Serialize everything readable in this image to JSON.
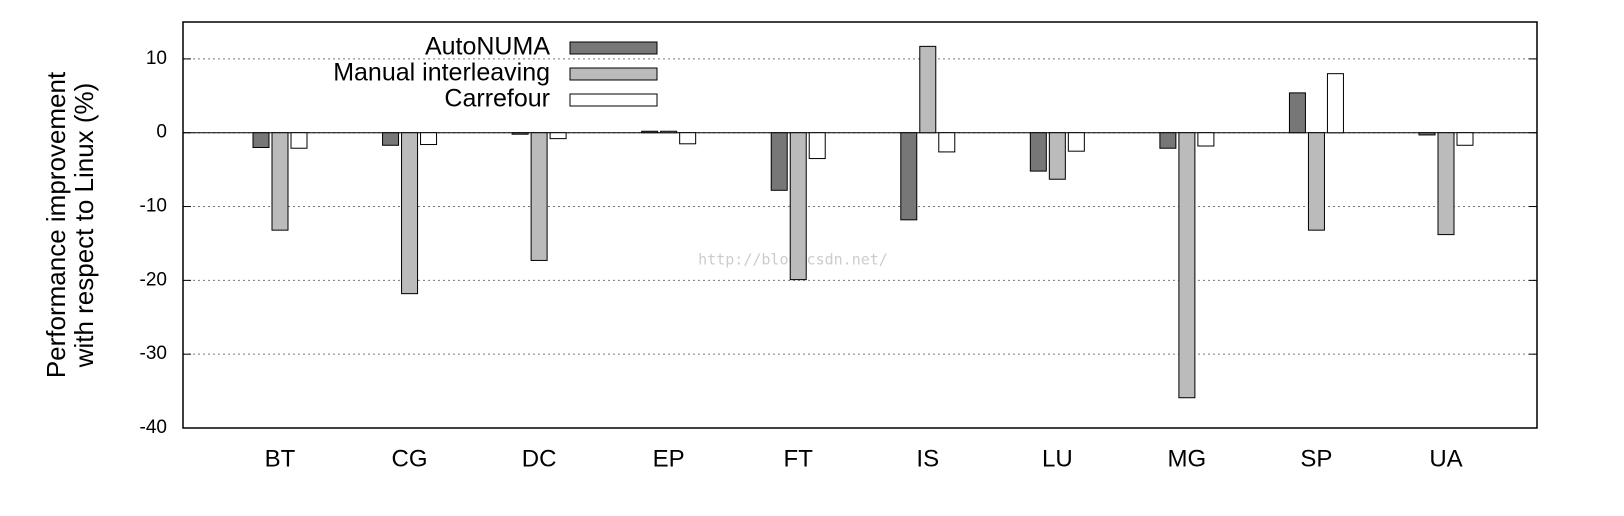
{
  "chart_data": {
    "type": "bar",
    "ylabel": [
      "Performance improvement",
      "with respect to Linux (%)"
    ],
    "watermark": "http://blog.csdn.net/",
    "categories": [
      "BT",
      "CG",
      "DC",
      "EP",
      "FT",
      "IS",
      "LU",
      "MG",
      "SP",
      "UA"
    ],
    "series": [
      {
        "name": "AutoNUMA",
        "color": "#777777",
        "values": [
          -2.0,
          -1.7,
          -0.2,
          0.2,
          -7.8,
          -11.8,
          -5.2,
          -2.1,
          5.4,
          -0.3
        ]
      },
      {
        "name": "Manual interleaving",
        "color": "#bbbbbb",
        "values": [
          -13.2,
          -21.8,
          -17.3,
          0.2,
          -19.9,
          11.7,
          -6.3,
          -35.9,
          -13.2,
          -13.8
        ]
      },
      {
        "name": "Carrefour",
        "color": "#ffffff",
        "values": [
          -2.1,
          -1.6,
          -0.8,
          -1.5,
          -3.5,
          -2.6,
          -2.5,
          -1.8,
          8.0,
          -1.7
        ]
      }
    ],
    "ylim": [
      -40,
      15
    ],
    "yticks": [
      -40,
      -30,
      -20,
      -10,
      0,
      10
    ],
    "grid": true,
    "legend": "top-left"
  }
}
